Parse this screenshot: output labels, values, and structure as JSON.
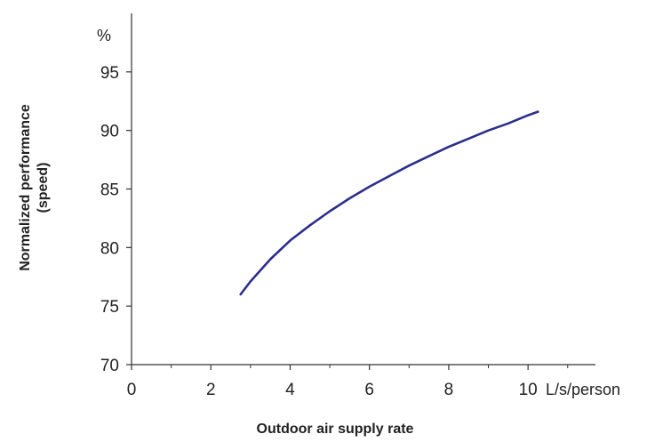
{
  "chart_data": {
    "type": "line",
    "title": "",
    "xlabel": "Outdoor air supply rate",
    "x_unit": "L/s/person",
    "ylabel_line1": "Normalized performance",
    "ylabel_line2": "(speed)",
    "y_unit": "%",
    "xlim": [
      0,
      11.7
    ],
    "ylim": [
      70,
      100
    ],
    "xticks": [
      0,
      2,
      4,
      6,
      8,
      10
    ],
    "yticks": [
      70,
      75,
      80,
      85,
      90,
      95
    ],
    "grid": false,
    "legend": "none",
    "line_color": "#2b2f8c",
    "series": [
      {
        "x": [
          2.75,
          3.0,
          3.5,
          4.0,
          4.5,
          5.0,
          5.5,
          6.0,
          6.5,
          7.0,
          7.5,
          8.0,
          8.5,
          9.0,
          9.5,
          10.0,
          10.25
        ],
        "y": [
          76.0,
          77.1,
          79.0,
          80.6,
          81.9,
          83.1,
          84.2,
          85.2,
          86.1,
          87.0,
          87.8,
          88.6,
          89.3,
          90.0,
          90.6,
          91.3,
          91.6
        ]
      }
    ]
  }
}
